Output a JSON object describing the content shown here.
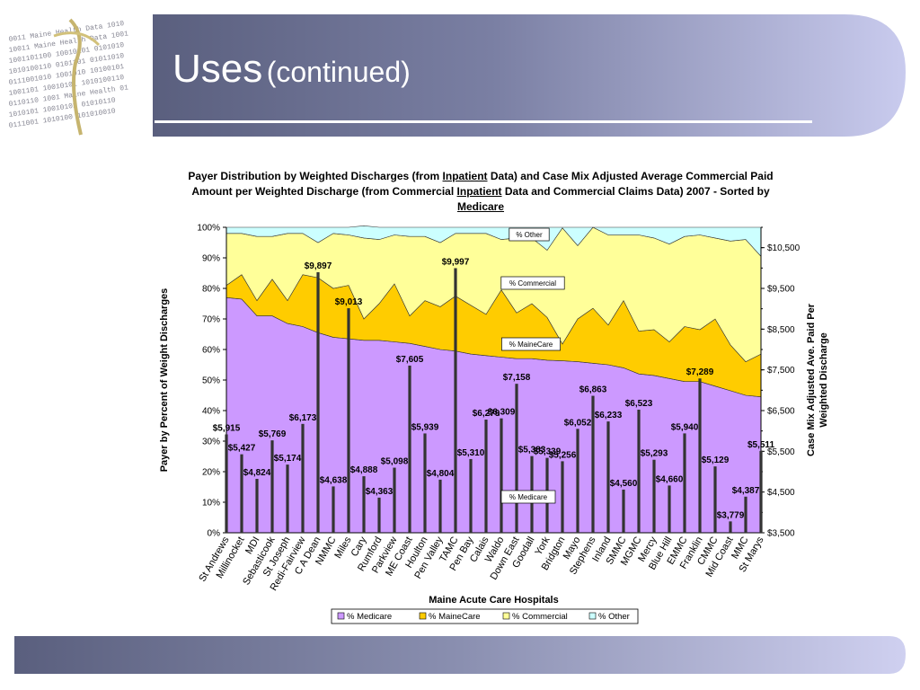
{
  "slide": {
    "title_main": "Uses",
    "title_sub": "(continued)"
  },
  "chart_data": {
    "type": "area+bar",
    "title_parts": [
      {
        "t": "Payer Distribution by Weighted Discharges (from ",
        "u": false
      },
      {
        "t": "Inpatient",
        "u": true
      },
      {
        "t": " Data) and Case Mix Adjusted Average Commercial Paid Amount per Weighted Discharge (from Commercial ",
        "u": false
      },
      {
        "t": "Inpatient",
        "u": true
      },
      {
        "t": " Data and Commercial Claims Data) 2007 - Sorted by ",
        "u": false
      },
      {
        "t": "Medicare",
        "u": true
      }
    ],
    "xlabel": "Maine Acute Care Hospitals",
    "ylabel_left": "Payer by Percent of Weight Discharges",
    "ylabel_right": "Case Mix Adjusted Ave. Paid Per Weighted Discharge",
    "ylim_left": [
      0,
      100
    ],
    "yticks_left": [
      "0%",
      "10%",
      "20%",
      "30%",
      "40%",
      "50%",
      "60%",
      "70%",
      "80%",
      "90%",
      "100%"
    ],
    "ylim_right": [
      3500,
      11000
    ],
    "yticks_right": [
      {
        "v": 3500,
        "label": "$3,500"
      },
      {
        "v": 4500,
        "label": "$4,500"
      },
      {
        "v": 5500,
        "label": "$5,500"
      },
      {
        "v": 6500,
        "label": "$6,500"
      },
      {
        "v": 7500,
        "label": "$7,500"
      },
      {
        "v": 8500,
        "label": "$8,500"
      },
      {
        "v": 9500,
        "label": "$9,500"
      },
      {
        "v": 10500,
        "label": "$10,500"
      }
    ],
    "categories": [
      "St Andrews",
      "Millinocket",
      "MDI",
      "Sebasticook",
      "St Joseph",
      "Redi-Fairview",
      "C A Dean",
      "NMMC",
      "Miles",
      "Cary",
      "Rumford",
      "Parkview",
      "ME Coast",
      "Houlton",
      "Pen Valley",
      "TAMC",
      "Pen Bay",
      "Calais",
      "Waldo",
      "Down East",
      "Goodall",
      "York",
      "Bridgton",
      "Mayo",
      "Stephens",
      "Inland",
      "SMMC",
      "MGMC",
      "Mercy",
      "Blue Hill",
      "EMMC",
      "Franklin",
      "CMMC",
      "Mid Coast",
      "MMC",
      "St Marys"
    ],
    "series": [
      {
        "name": "% Medicare",
        "color": "#cc99ff",
        "values": [
          77,
          76.5,
          71,
          71,
          68.5,
          67.5,
          65.5,
          64,
          63.5,
          63,
          63,
          62.5,
          62,
          61,
          60,
          59.5,
          58.5,
          58,
          57.5,
          57,
          57,
          56.5,
          56.3,
          56,
          55.5,
          55,
          54,
          52,
          51.5,
          50.5,
          49.5,
          49.5,
          48,
          46.5,
          45,
          44.5
        ]
      },
      {
        "name": "% MaineCare",
        "color": "#ffcc00",
        "values": [
          4,
          8,
          5,
          12,
          7.5,
          17,
          18,
          16,
          17.5,
          7,
          12,
          19,
          9,
          15,
          14,
          18,
          16,
          13.5,
          22,
          15,
          18,
          14,
          5.5,
          14,
          18,
          13,
          22,
          14,
          15,
          12,
          18,
          17,
          22,
          15,
          11,
          14
        ]
      },
      {
        "name": "% Commercial",
        "color": "#ffff99",
        "values": [
          17,
          13.5,
          21,
          14,
          22,
          13.5,
          11.5,
          18,
          16.5,
          26.5,
          21,
          16,
          26,
          21,
          21,
          20.5,
          23.5,
          26.5,
          16.5,
          24.5,
          21.5,
          22,
          38,
          24,
          26.5,
          29.5,
          21.5,
          31.5,
          30,
          32,
          29.5,
          31,
          26.5,
          34,
          40,
          32
        ]
      },
      {
        "name": "% Other",
        "color": "#ccffff",
        "values": [
          2,
          2,
          3,
          3,
          2,
          2,
          5,
          2,
          2.5,
          4,
          4,
          2.5,
          3,
          3,
          5,
          2,
          2,
          2,
          4,
          3.5,
          3.5,
          7.5,
          0.2,
          6,
          0,
          2.5,
          2.5,
          2.5,
          3.5,
          5.5,
          3,
          2.5,
          3.5,
          4.5,
          4,
          9.5
        ]
      }
    ],
    "bar_values": [
      5915,
      5427,
      4824,
      5769,
      5174,
      6173,
      9897,
      4638,
      9013,
      4888,
      4363,
      5098,
      7605,
      5939,
      4804,
      9997,
      5310,
      6279,
      6309,
      7158,
      5383,
      5339,
      5256,
      6052,
      6863,
      6233,
      4560,
      6523,
      5293,
      4660,
      5940,
      7289,
      5129,
      3779,
      4387,
      5511
    ],
    "bar_labels": [
      "$5,915",
      "$5,427",
      "$4,824",
      "$5,769",
      "$5,174",
      "$6,173",
      "$9,897",
      "$4,638",
      "$9,013",
      "$4,888",
      "$4,363",
      "$5,098",
      "$7,605",
      "$5,939",
      "$4,804",
      "$9,997",
      "$5,310",
      "$6,279",
      "$6,309",
      "$7,158",
      "$5,383",
      "$5,339",
      "$5,256",
      "$6,052",
      "$6,863",
      "$6,233",
      "$4,560",
      "$6,523",
      "$5,293",
      "$4,660",
      "$5,940",
      "$7,289",
      "$5,129",
      "$3,779",
      "$4,387",
      "$5,511"
    ],
    "area_labels": [
      "% Other",
      "% Commercial",
      "% MaineCare",
      "% Medicare"
    ],
    "legend_position": "bottom",
    "grid": false
  }
}
